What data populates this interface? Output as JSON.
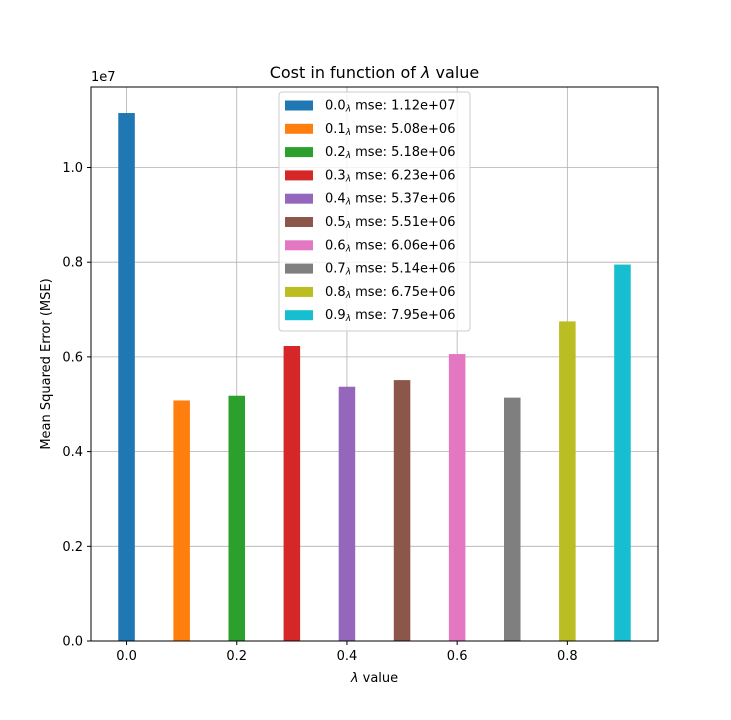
{
  "chart_data": {
    "type": "bar",
    "title_prefix": "Cost in function of ",
    "title_symbol": "λ",
    "title_suffix": " value",
    "xlabel_symbol": "λ",
    "xlabel_suffix": " value",
    "ylabel": "Mean Squared Error (MSE)",
    "y_offset_label": "1e7",
    "x": [
      0.0,
      0.1,
      0.2,
      0.3,
      0.4,
      0.5,
      0.6,
      0.7,
      0.8,
      0.9
    ],
    "values": [
      11150000,
      5080000,
      5180000,
      6230000,
      5370000,
      5510000,
      6060000,
      5140000,
      6750000,
      7950000
    ],
    "colors": [
      "#1f77b4",
      "#ff7f0e",
      "#2ca02c",
      "#d62728",
      "#9467bd",
      "#8c564b",
      "#e377c2",
      "#7f7f7f",
      "#bcbd22",
      "#17becf"
    ],
    "xlim": [
      -0.0645,
      0.9645
    ],
    "ylim": [
      0,
      11700000
    ],
    "xticks": [
      "0.0",
      "0.2",
      "0.4",
      "0.6",
      "0.8"
    ],
    "xtick_values": [
      0.0,
      0.2,
      0.4,
      0.6,
      0.8
    ],
    "yticks": [
      "0.0",
      "0.2",
      "0.4",
      "0.6",
      "0.8",
      "1.0"
    ],
    "ytick_values": [
      0,
      2000000,
      4000000,
      6000000,
      8000000,
      10000000
    ],
    "bar_width": 0.03,
    "grid": true,
    "legend_position": "upper-center",
    "legend": [
      {
        "prefix": "0.0",
        "sub": "λ",
        "suffix": " mse: 1.12e+07"
      },
      {
        "prefix": "0.1",
        "sub": "λ",
        "suffix": " mse: 5.08e+06"
      },
      {
        "prefix": "0.2",
        "sub": "λ",
        "suffix": " mse: 5.18e+06"
      },
      {
        "prefix": "0.3",
        "sub": "λ",
        "suffix": " mse: 6.23e+06"
      },
      {
        "prefix": "0.4",
        "sub": "λ",
        "suffix": " mse: 5.37e+06"
      },
      {
        "prefix": "0.5",
        "sub": "λ",
        "suffix": " mse: 5.51e+06"
      },
      {
        "prefix": "0.6",
        "sub": "λ",
        "suffix": " mse: 6.06e+06"
      },
      {
        "prefix": "0.7",
        "sub": "λ",
        "suffix": " mse: 5.14e+06"
      },
      {
        "prefix": "0.8",
        "sub": "λ",
        "suffix": " mse: 6.75e+06"
      },
      {
        "prefix": "0.9",
        "sub": "λ",
        "suffix": " mse: 7.95e+06"
      }
    ]
  }
}
